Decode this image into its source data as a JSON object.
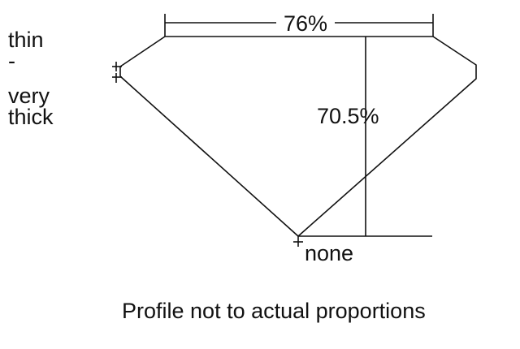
{
  "girdle_label": {
    "line1": "thin",
    "line2": "-",
    "line3": "very",
    "line4": "thick"
  },
  "table_width": "76%",
  "total_depth": "70.5%",
  "culet": "none",
  "caption": "Profile not to actual proportions",
  "colors": {
    "line": "#111111",
    "background": "#ffffff"
  }
}
